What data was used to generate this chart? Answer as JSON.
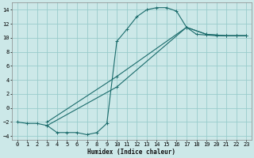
{
  "xlabel": "Humidex (Indice chaleur)",
  "xlim": [
    -0.5,
    23.5
  ],
  "ylim": [
    -4.5,
    15.0
  ],
  "yticks": [
    -4,
    -2,
    0,
    2,
    4,
    6,
    8,
    10,
    12,
    14
  ],
  "xticks": [
    0,
    1,
    2,
    3,
    4,
    5,
    6,
    7,
    8,
    9,
    10,
    11,
    12,
    13,
    14,
    15,
    16,
    17,
    18,
    19,
    20,
    21,
    22,
    23
  ],
  "bg_color": "#cce8e8",
  "grid_color": "#99cccc",
  "line_color": "#1a6b6b",
  "line1_x": [
    0,
    1,
    2,
    3,
    4,
    5,
    6,
    7,
    8,
    9,
    10,
    11,
    12,
    13,
    14,
    15,
    16,
    17,
    18,
    19,
    20,
    21,
    22,
    23
  ],
  "line1_y": [
    -2.0,
    -2.2,
    -2.2,
    -2.5,
    -3.5,
    -3.5,
    -3.5,
    -3.8,
    -3.5,
    -2.2,
    9.5,
    11.2,
    13.0,
    14.0,
    14.3,
    14.3,
    13.8,
    11.5,
    10.5,
    10.4,
    10.3,
    10.3,
    10.3,
    10.3
  ],
  "line2_x": [
    3,
    10,
    17,
    19,
    20,
    21,
    22,
    23
  ],
  "line2_y": [
    -2.0,
    4.5,
    11.5,
    10.5,
    10.4,
    10.3,
    10.3,
    10.3
  ],
  "line3_x": [
    3,
    10,
    17,
    19,
    20,
    21,
    22,
    23
  ],
  "line3_y": [
    -2.5,
    3.0,
    11.5,
    10.5,
    10.4,
    10.3,
    10.3,
    10.3
  ]
}
